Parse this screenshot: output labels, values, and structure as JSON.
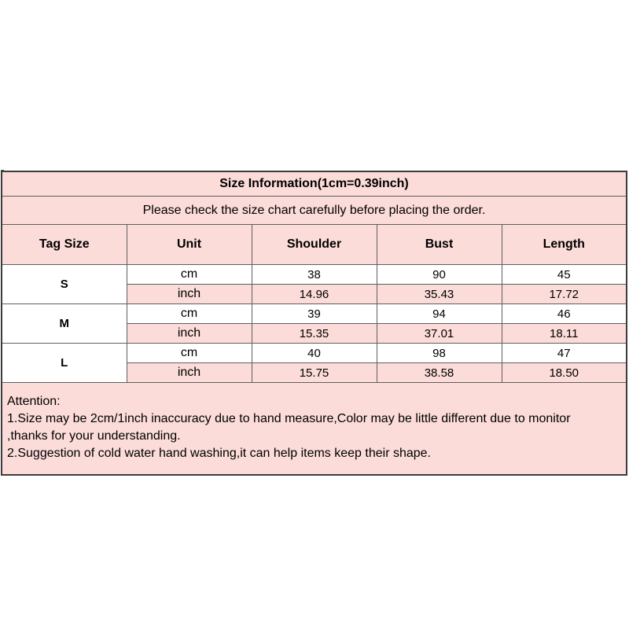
{
  "chart_data": {
    "type": "table",
    "title": "Size Information(1cm=0.39inch)",
    "subtitle": "Please check the size chart carefully before placing the order.",
    "columns": [
      "Tag Size",
      "Unit",
      "Shoulder",
      "Bust",
      "Length"
    ],
    "rows": [
      [
        "S",
        "cm",
        "38",
        "90",
        "45"
      ],
      [
        "S",
        "inch",
        "14.96",
        "35.43",
        "17.72"
      ],
      [
        "M",
        "cm",
        "39",
        "94",
        "46"
      ],
      [
        "M",
        "inch",
        "15.35",
        "37.01",
        "18.11"
      ],
      [
        "L",
        "cm",
        "40",
        "98",
        "47"
      ],
      [
        "L",
        "inch",
        "15.75",
        "38.58",
        "18.50"
      ]
    ],
    "layout_hints": {
      "tag_size_cells_merged_over_unit_rows": true,
      "cm_rows_background": "white",
      "inch_rows_background": "pink"
    }
  },
  "attention": {
    "heading": "Attention:",
    "display_lines": [
      "1.Size may be 2cm/1inch inaccuracy due to hand measure,Color may be little different due to monitor",
      ",thanks for your understanding.",
      "2.Suggestion of cold water hand washing,it can help items keep their shape."
    ]
  },
  "colors": {
    "page_background": "#ffffff",
    "row_pink": "#fbdcd9",
    "row_white": "#ffffff",
    "grid_border": "#5f5f5f",
    "outer_border": "#3c3c3c",
    "text": "#000000",
    "artifact_green_pixel": "#0e7a12"
  }
}
